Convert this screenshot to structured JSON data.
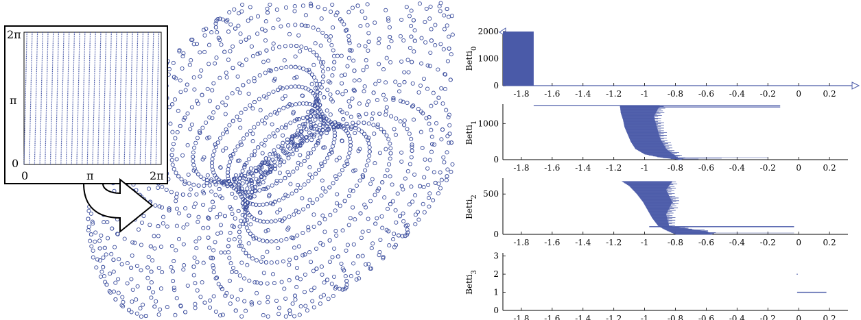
{
  "figure": {
    "torus_plot": {
      "inset": {
        "x_ticks": [
          "0",
          "π",
          "2π"
        ],
        "y_ticks": [
          "0",
          "π",
          "2π"
        ]
      }
    },
    "colors": {
      "series": "#4a5aa8",
      "marker": "#3d4f9e",
      "axis": "#000000"
    }
  },
  "chart_data": [
    {
      "type": "bar",
      "ylabel": "Betti_0",
      "x_ticks": [
        "-1.8",
        "-1.6",
        "-1.4",
        "-1.2",
        "-1",
        "-0.8",
        "-0.6",
        "-0.4",
        "-0.2",
        "0",
        "0.2"
      ],
      "y_ticks": [
        "0",
        "1000",
        "2000"
      ],
      "xlim": [
        -1.92,
        0.32
      ],
      "ylim": [
        0,
        2000
      ],
      "axis_arrow": true,
      "bars": [
        {
          "x0": -1.92,
          "x1": -1.72,
          "top": 2000
        }
      ]
    },
    {
      "type": "bar",
      "ylabel": "Betti_1",
      "x_ticks": [
        "-1.8",
        "-1.6",
        "-1.4",
        "-1.2",
        "-1",
        "-0.8",
        "-0.6",
        "-0.4",
        "-0.2",
        "0",
        "0.2"
      ],
      "y_ticks": [
        "0",
        "1000"
      ],
      "xlim": [
        -1.92,
        0.32
      ],
      "ylim": [
        0,
        1500
      ],
      "long_bars": [
        {
          "start": -1.72,
          "end": -0.12,
          "height": 1500
        },
        {
          "start": -1.16,
          "end": -0.12,
          "height": 1460
        }
      ],
      "profile": [
        [
          1500,
          -1.16
        ],
        [
          1300,
          -1.155
        ],
        [
          1100,
          -1.14
        ],
        [
          900,
          -1.13
        ],
        [
          700,
          -1.11
        ],
        [
          500,
          -1.09
        ],
        [
          300,
          -1.06
        ],
        [
          150,
          -1.0
        ],
        [
          60,
          -0.9
        ],
        [
          0,
          -0.78
        ]
      ],
      "extent_max": [
        [
          1500,
          -0.9
        ],
        [
          1200,
          -0.94
        ],
        [
          900,
          -0.92
        ],
        [
          600,
          -0.9
        ],
        [
          300,
          -0.86
        ],
        [
          100,
          -0.8
        ],
        [
          0,
          -0.76
        ]
      ],
      "thin_lines": [
        -0.65,
        -0.5,
        -0.2
      ]
    },
    {
      "type": "bar",
      "ylabel": "Betti_2",
      "x_ticks": [
        "-1.8",
        "-1.6",
        "-1.4",
        "-1.2",
        "-1",
        "-0.8",
        "-0.6",
        "-0.4",
        "-0.2",
        "0",
        "0.2"
      ],
      "y_ticks": [
        "0",
        "500"
      ],
      "xlim": [
        -1.92,
        0.32
      ],
      "ylim": [
        0,
        680
      ],
      "long_bars": [
        {
          "start": -0.97,
          "end": -0.03,
          "height": 95
        }
      ],
      "profile": [
        [
          660,
          -1.15
        ],
        [
          600,
          -1.1
        ],
        [
          500,
          -1.05
        ],
        [
          400,
          -1.01
        ],
        [
          300,
          -0.98
        ],
        [
          200,
          -0.95
        ],
        [
          100,
          -0.91
        ],
        [
          50,
          -0.86
        ],
        [
          0,
          -0.8
        ]
      ],
      "extent_max": [
        [
          660,
          -0.82
        ],
        [
          550,
          -0.86
        ],
        [
          400,
          -0.82
        ],
        [
          250,
          -0.86
        ],
        [
          100,
          -0.84
        ],
        [
          40,
          -0.6
        ],
        [
          0,
          -0.56
        ]
      ],
      "thin_lines": [
        -0.55,
        -0.03
      ]
    },
    {
      "type": "bar",
      "ylabel": "Betti_3",
      "x_ticks": [
        "-1.8",
        "-1.6",
        "-1.4",
        "-1.2",
        "-1",
        "-0.8",
        "-0.6",
        "-0.4",
        "-0.2",
        "0",
        "0.2"
      ],
      "y_ticks": [
        "0",
        "1",
        "2",
        "3"
      ],
      "xlim": [
        -1.92,
        0.32
      ],
      "ylim": [
        0,
        3.1
      ],
      "bars": [
        {
          "x0": -0.01,
          "x1": 0.18,
          "y": 1
        }
      ],
      "points": [
        {
          "x": -0.01,
          "y": 2
        }
      ]
    }
  ]
}
